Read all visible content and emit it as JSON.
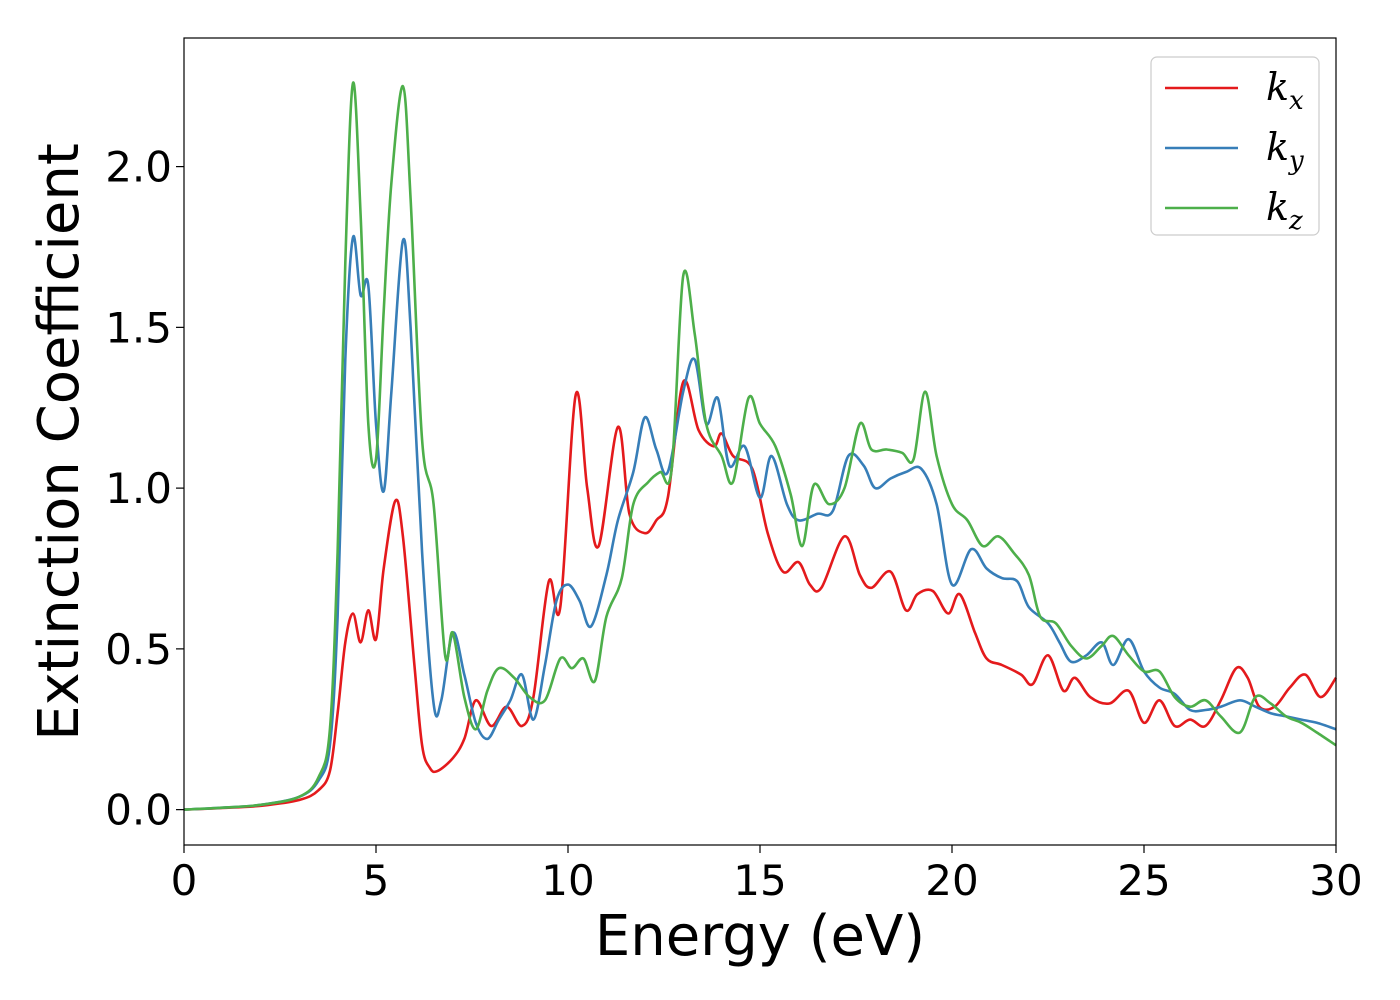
{
  "chart_data": {
    "type": "line",
    "xlabel": "Energy (eV)",
    "ylabel": "Extinction Coefficient",
    "xlim": [
      0,
      30
    ],
    "ylim": [
      -0.11,
      2.4
    ],
    "xticks": [
      0,
      5,
      10,
      15,
      20,
      25,
      30
    ],
    "xtick_labels": [
      "0",
      "5",
      "10",
      "15",
      "20",
      "25",
      "30"
    ],
    "yticks": [
      0.0,
      0.5,
      1.0,
      1.5,
      2.0
    ],
    "ytick_labels": [
      "0.0",
      "0.5",
      "1.0",
      "1.5",
      "2.0"
    ],
    "grid": false,
    "legend_position": "top-right",
    "series": [
      {
        "name": "k",
        "subscript": "x",
        "color": "#e41a1c",
        "points": [
          [
            0,
            0
          ],
          [
            1,
            0.005
          ],
          [
            2,
            0.012
          ],
          [
            3,
            0.03
          ],
          [
            3.5,
            0.06
          ],
          [
            3.8,
            0.12
          ],
          [
            4.0,
            0.3
          ],
          [
            4.2,
            0.52
          ],
          [
            4.4,
            0.61
          ],
          [
            4.6,
            0.52
          ],
          [
            4.8,
            0.62
          ],
          [
            5.0,
            0.53
          ],
          [
            5.2,
            0.75
          ],
          [
            5.5,
            0.96
          ],
          [
            5.7,
            0.85
          ],
          [
            6.0,
            0.45
          ],
          [
            6.2,
            0.2
          ],
          [
            6.4,
            0.13
          ],
          [
            6.6,
            0.12
          ],
          [
            7.0,
            0.16
          ],
          [
            7.3,
            0.22
          ],
          [
            7.6,
            0.34
          ],
          [
            8.0,
            0.26
          ],
          [
            8.4,
            0.32
          ],
          [
            8.8,
            0.26
          ],
          [
            9.1,
            0.35
          ],
          [
            9.5,
            0.71
          ],
          [
            9.8,
            0.63
          ],
          [
            10.2,
            1.29
          ],
          [
            10.5,
            1.0
          ],
          [
            10.8,
            0.82
          ],
          [
            11.3,
            1.19
          ],
          [
            11.6,
            0.92
          ],
          [
            12.0,
            0.86
          ],
          [
            12.3,
            0.9
          ],
          [
            12.6,
            0.97
          ],
          [
            13.0,
            1.33
          ],
          [
            13.4,
            1.18
          ],
          [
            13.8,
            1.13
          ],
          [
            14.0,
            1.17
          ],
          [
            14.3,
            1.1
          ],
          [
            14.8,
            1.06
          ],
          [
            15.2,
            0.86
          ],
          [
            15.6,
            0.74
          ],
          [
            16.0,
            0.77
          ],
          [
            16.3,
            0.7
          ],
          [
            16.6,
            0.69
          ],
          [
            17.2,
            0.85
          ],
          [
            17.6,
            0.73
          ],
          [
            17.9,
            0.69
          ],
          [
            18.4,
            0.74
          ],
          [
            18.8,
            0.62
          ],
          [
            19.1,
            0.67
          ],
          [
            19.5,
            0.68
          ],
          [
            19.9,
            0.61
          ],
          [
            20.2,
            0.67
          ],
          [
            20.6,
            0.55
          ],
          [
            20.9,
            0.47
          ],
          [
            21.3,
            0.45
          ],
          [
            21.8,
            0.42
          ],
          [
            22.1,
            0.39
          ],
          [
            22.5,
            0.48
          ],
          [
            22.9,
            0.37
          ],
          [
            23.2,
            0.41
          ],
          [
            23.6,
            0.35
          ],
          [
            24.1,
            0.33
          ],
          [
            24.6,
            0.37
          ],
          [
            25.0,
            0.27
          ],
          [
            25.4,
            0.34
          ],
          [
            25.8,
            0.26
          ],
          [
            26.2,
            0.28
          ],
          [
            26.6,
            0.26
          ],
          [
            27.0,
            0.34
          ],
          [
            27.4,
            0.44
          ],
          [
            27.7,
            0.41
          ],
          [
            28.0,
            0.32
          ],
          [
            28.4,
            0.32
          ],
          [
            28.8,
            0.38
          ],
          [
            29.2,
            0.42
          ],
          [
            29.6,
            0.35
          ],
          [
            30.0,
            0.41
          ]
        ]
      },
      {
        "name": "k",
        "subscript": "y",
        "color": "#377eb8",
        "points": [
          [
            0,
            0
          ],
          [
            1,
            0.006
          ],
          [
            2,
            0.015
          ],
          [
            3,
            0.04
          ],
          [
            3.5,
            0.09
          ],
          [
            3.8,
            0.2
          ],
          [
            4.0,
            0.6
          ],
          [
            4.2,
            1.4
          ],
          [
            4.4,
            1.78
          ],
          [
            4.6,
            1.6
          ],
          [
            4.8,
            1.63
          ],
          [
            5.0,
            1.2
          ],
          [
            5.2,
            0.99
          ],
          [
            5.4,
            1.3
          ],
          [
            5.7,
            1.77
          ],
          [
            5.9,
            1.5
          ],
          [
            6.2,
            0.8
          ],
          [
            6.5,
            0.33
          ],
          [
            6.7,
            0.34
          ],
          [
            7.0,
            0.55
          ],
          [
            7.3,
            0.42
          ],
          [
            7.6,
            0.27
          ],
          [
            7.9,
            0.22
          ],
          [
            8.2,
            0.28
          ],
          [
            8.5,
            0.34
          ],
          [
            8.8,
            0.42
          ],
          [
            9.1,
            0.28
          ],
          [
            9.4,
            0.45
          ],
          [
            9.7,
            0.65
          ],
          [
            10.0,
            0.7
          ],
          [
            10.3,
            0.65
          ],
          [
            10.6,
            0.57
          ],
          [
            11.0,
            0.73
          ],
          [
            11.3,
            0.9
          ],
          [
            11.7,
            1.05
          ],
          [
            12.0,
            1.22
          ],
          [
            12.3,
            1.12
          ],
          [
            12.6,
            1.05
          ],
          [
            13.0,
            1.3
          ],
          [
            13.3,
            1.4
          ],
          [
            13.6,
            1.2
          ],
          [
            13.9,
            1.28
          ],
          [
            14.2,
            1.07
          ],
          [
            14.6,
            1.13
          ],
          [
            15.0,
            0.97
          ],
          [
            15.3,
            1.1
          ],
          [
            15.7,
            0.95
          ],
          [
            16.0,
            0.9
          ],
          [
            16.5,
            0.92
          ],
          [
            16.9,
            0.93
          ],
          [
            17.3,
            1.1
          ],
          [
            17.7,
            1.07
          ],
          [
            18.0,
            1.0
          ],
          [
            18.4,
            1.03
          ],
          [
            18.8,
            1.05
          ],
          [
            19.2,
            1.06
          ],
          [
            19.6,
            0.95
          ],
          [
            20.0,
            0.7
          ],
          [
            20.5,
            0.81
          ],
          [
            20.9,
            0.75
          ],
          [
            21.3,
            0.72
          ],
          [
            21.7,
            0.71
          ],
          [
            22.0,
            0.63
          ],
          [
            22.5,
            0.58
          ],
          [
            22.8,
            0.52
          ],
          [
            23.1,
            0.46
          ],
          [
            23.5,
            0.48
          ],
          [
            23.9,
            0.52
          ],
          [
            24.2,
            0.45
          ],
          [
            24.6,
            0.53
          ],
          [
            25.0,
            0.43
          ],
          [
            25.4,
            0.38
          ],
          [
            25.8,
            0.36
          ],
          [
            26.2,
            0.31
          ],
          [
            26.6,
            0.31
          ],
          [
            27.0,
            0.32
          ],
          [
            27.5,
            0.34
          ],
          [
            27.9,
            0.32
          ],
          [
            28.3,
            0.3
          ],
          [
            28.7,
            0.29
          ],
          [
            29.1,
            0.28
          ],
          [
            29.5,
            0.27
          ],
          [
            30.0,
            0.25
          ]
        ]
      },
      {
        "name": "k",
        "subscript": "z",
        "color": "#4daf4a",
        "points": [
          [
            0,
            0
          ],
          [
            1,
            0.006
          ],
          [
            2,
            0.015
          ],
          [
            3,
            0.04
          ],
          [
            3.5,
            0.1
          ],
          [
            3.8,
            0.25
          ],
          [
            4.0,
            0.8
          ],
          [
            4.2,
            1.7
          ],
          [
            4.4,
            2.26
          ],
          [
            4.6,
            1.85
          ],
          [
            4.8,
            1.2
          ],
          [
            5.0,
            1.09
          ],
          [
            5.2,
            1.55
          ],
          [
            5.4,
            1.95
          ],
          [
            5.7,
            2.25
          ],
          [
            5.9,
            1.9
          ],
          [
            6.2,
            1.15
          ],
          [
            6.5,
            0.95
          ],
          [
            6.8,
            0.48
          ],
          [
            7.0,
            0.55
          ],
          [
            7.3,
            0.35
          ],
          [
            7.6,
            0.25
          ],
          [
            7.9,
            0.37
          ],
          [
            8.2,
            0.44
          ],
          [
            8.6,
            0.41
          ],
          [
            9.0,
            0.35
          ],
          [
            9.4,
            0.34
          ],
          [
            9.8,
            0.47
          ],
          [
            10.1,
            0.44
          ],
          [
            10.4,
            0.47
          ],
          [
            10.7,
            0.4
          ],
          [
            11.0,
            0.6
          ],
          [
            11.4,
            0.72
          ],
          [
            11.7,
            0.95
          ],
          [
            12.1,
            1.02
          ],
          [
            12.4,
            1.05
          ],
          [
            12.7,
            1.06
          ],
          [
            13.0,
            1.66
          ],
          [
            13.3,
            1.48
          ],
          [
            13.6,
            1.2
          ],
          [
            14.0,
            1.1
          ],
          [
            14.3,
            1.02
          ],
          [
            14.7,
            1.28
          ],
          [
            15.0,
            1.2
          ],
          [
            15.4,
            1.13
          ],
          [
            15.8,
            0.98
          ],
          [
            16.1,
            0.82
          ],
          [
            16.4,
            1.01
          ],
          [
            16.8,
            0.95
          ],
          [
            17.2,
            1.0
          ],
          [
            17.6,
            1.2
          ],
          [
            17.9,
            1.12
          ],
          [
            18.3,
            1.12
          ],
          [
            18.7,
            1.11
          ],
          [
            19.0,
            1.09
          ],
          [
            19.3,
            1.3
          ],
          [
            19.6,
            1.1
          ],
          [
            20.0,
            0.95
          ],
          [
            20.4,
            0.9
          ],
          [
            20.8,
            0.82
          ],
          [
            21.2,
            0.85
          ],
          [
            21.6,
            0.8
          ],
          [
            22.0,
            0.73
          ],
          [
            22.3,
            0.6
          ],
          [
            22.7,
            0.58
          ],
          [
            23.1,
            0.51
          ],
          [
            23.5,
            0.47
          ],
          [
            23.9,
            0.51
          ],
          [
            24.2,
            0.54
          ],
          [
            24.6,
            0.48
          ],
          [
            25.0,
            0.43
          ],
          [
            25.4,
            0.43
          ],
          [
            25.8,
            0.35
          ],
          [
            26.2,
            0.32
          ],
          [
            26.6,
            0.34
          ],
          [
            27.0,
            0.29
          ],
          [
            27.5,
            0.24
          ],
          [
            27.9,
            0.35
          ],
          [
            28.3,
            0.33
          ],
          [
            28.7,
            0.29
          ],
          [
            29.1,
            0.27
          ],
          [
            29.5,
            0.24
          ],
          [
            30.0,
            0.2
          ]
        ]
      }
    ]
  }
}
